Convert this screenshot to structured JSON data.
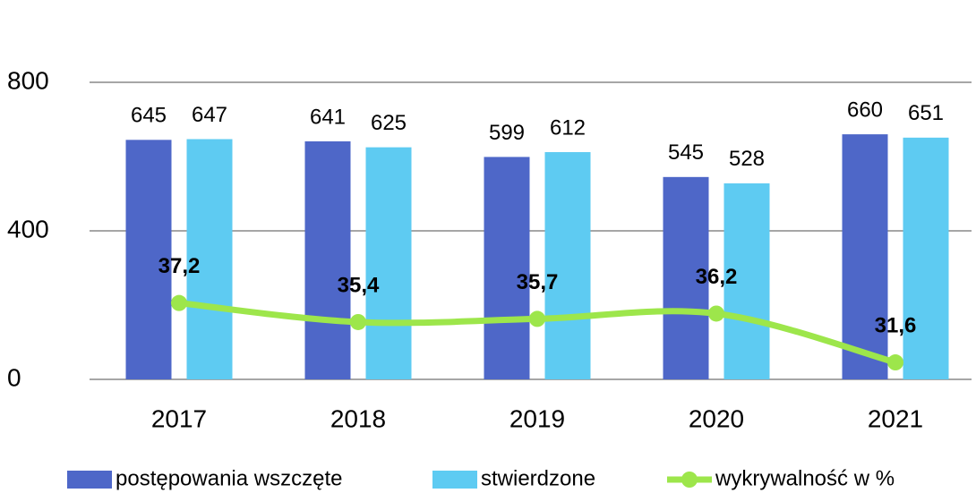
{
  "chart_data": {
    "type": "bar",
    "categories": [
      "2017",
      "2018",
      "2019",
      "2020",
      "2021"
    ],
    "series": [
      {
        "name": "postępowania wszczęte",
        "color": "#4e67c8",
        "values": [
          645,
          641,
          599,
          545,
          660
        ]
      },
      {
        "name": "stwierdzone",
        "color": "#5ecbf2",
        "values": [
          647,
          625,
          612,
          528,
          651
        ]
      },
      {
        "name": "wykrywalność w %",
        "color": "#9de64b",
        "type": "line",
        "axis": "y2",
        "values": [
          37.2,
          35.4,
          35.7,
          36.2,
          31.6
        ],
        "value_labels": [
          "37,2",
          "35,4",
          "35,7",
          "36,2",
          "31,6"
        ]
      }
    ],
    "ylim": [
      0,
      800
    ],
    "yticks": [
      0,
      400,
      800
    ],
    "y2lim": [
      30,
      58
    ],
    "grid": true,
    "legend": "bottom"
  }
}
